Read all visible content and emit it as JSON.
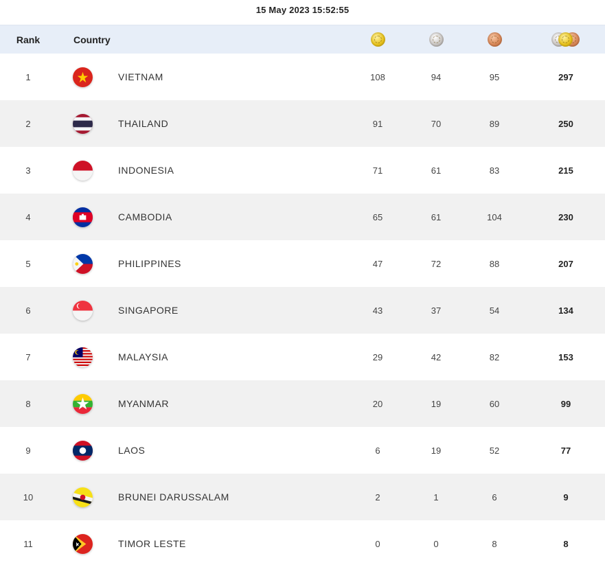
{
  "timestamp": "15 May 2023  15:52:55",
  "header": {
    "rank_label": "Rank",
    "country_label": "Country",
    "gold_icon": "gold-medal-icon",
    "silver_icon": "silver-medal-icon",
    "bronze_icon": "bronze-medal-icon",
    "total_icon": "total-medals-icon"
  },
  "colors": {
    "header_bg": "#e7eef8",
    "alt_row_bg": "#f1f1f1",
    "gold": "#e7c21d",
    "silver": "#c9c5c2",
    "bronze": "#d88758"
  },
  "rows": [
    {
      "rank": "1",
      "country": "VIETNAM",
      "flag": "vietnam-flag-icon",
      "gold": "108",
      "silver": "94",
      "bronze": "95",
      "total": "297"
    },
    {
      "rank": "2",
      "country": "THAILAND",
      "flag": "thailand-flag-icon",
      "gold": "91",
      "silver": "70",
      "bronze": "89",
      "total": "250"
    },
    {
      "rank": "3",
      "country": "INDONESIA",
      "flag": "indonesia-flag-icon",
      "gold": "71",
      "silver": "61",
      "bronze": "83",
      "total": "215"
    },
    {
      "rank": "4",
      "country": "CAMBODIA",
      "flag": "cambodia-flag-icon",
      "gold": "65",
      "silver": "61",
      "bronze": "104",
      "total": "230"
    },
    {
      "rank": "5",
      "country": "PHILIPPINES",
      "flag": "philippines-flag-icon",
      "gold": "47",
      "silver": "72",
      "bronze": "88",
      "total": "207"
    },
    {
      "rank": "6",
      "country": "SINGAPORE",
      "flag": "singapore-flag-icon",
      "gold": "43",
      "silver": "37",
      "bronze": "54",
      "total": "134"
    },
    {
      "rank": "7",
      "country": "MALAYSIA",
      "flag": "malaysia-flag-icon",
      "gold": "29",
      "silver": "42",
      "bronze": "82",
      "total": "153"
    },
    {
      "rank": "8",
      "country": "MYANMAR",
      "flag": "myanmar-flag-icon",
      "gold": "20",
      "silver": "19",
      "bronze": "60",
      "total": "99"
    },
    {
      "rank": "9",
      "country": "LAOS",
      "flag": "laos-flag-icon",
      "gold": "6",
      "silver": "19",
      "bronze": "52",
      "total": "77"
    },
    {
      "rank": "10",
      "country": "BRUNEI DARUSSALAM",
      "flag": "brunei-flag-icon",
      "gold": "2",
      "silver": "1",
      "bronze": "6",
      "total": "9"
    },
    {
      "rank": "11",
      "country": "TIMOR LESTE",
      "flag": "timor-leste-flag-icon",
      "gold": "0",
      "silver": "0",
      "bronze": "8",
      "total": "8"
    }
  ]
}
